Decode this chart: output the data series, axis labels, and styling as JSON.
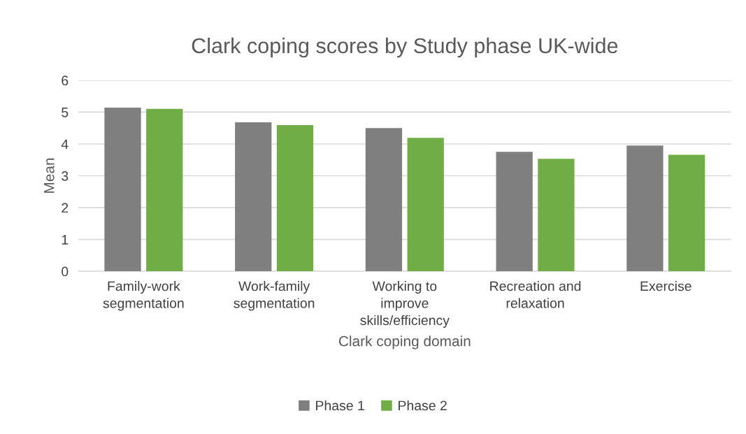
{
  "chart_data": {
    "type": "bar",
    "title": "Clark coping scores by Study phase UK-wide",
    "xlabel": "Clark coping domain",
    "ylabel": "Mean",
    "categories": [
      "Family-work\nsegmentation",
      "Work-family\nsegmentation",
      "Working to\nimprove\nskills/efficiency",
      "Recreation and\nrelaxation",
      "Exercise"
    ],
    "series": [
      {
        "name": "Phase 1",
        "color": "#7f7f7f",
        "values": [
          5.14,
          4.68,
          4.5,
          3.75,
          3.95
        ]
      },
      {
        "name": "Phase 2",
        "color": "#70ad47",
        "values": [
          5.1,
          4.59,
          4.19,
          3.53,
          3.66
        ]
      }
    ],
    "ylim": [
      0,
      6
    ],
    "yticks": [
      0,
      1,
      2,
      3,
      4,
      5,
      6
    ],
    "grid": "y",
    "legend": "bottom"
  }
}
